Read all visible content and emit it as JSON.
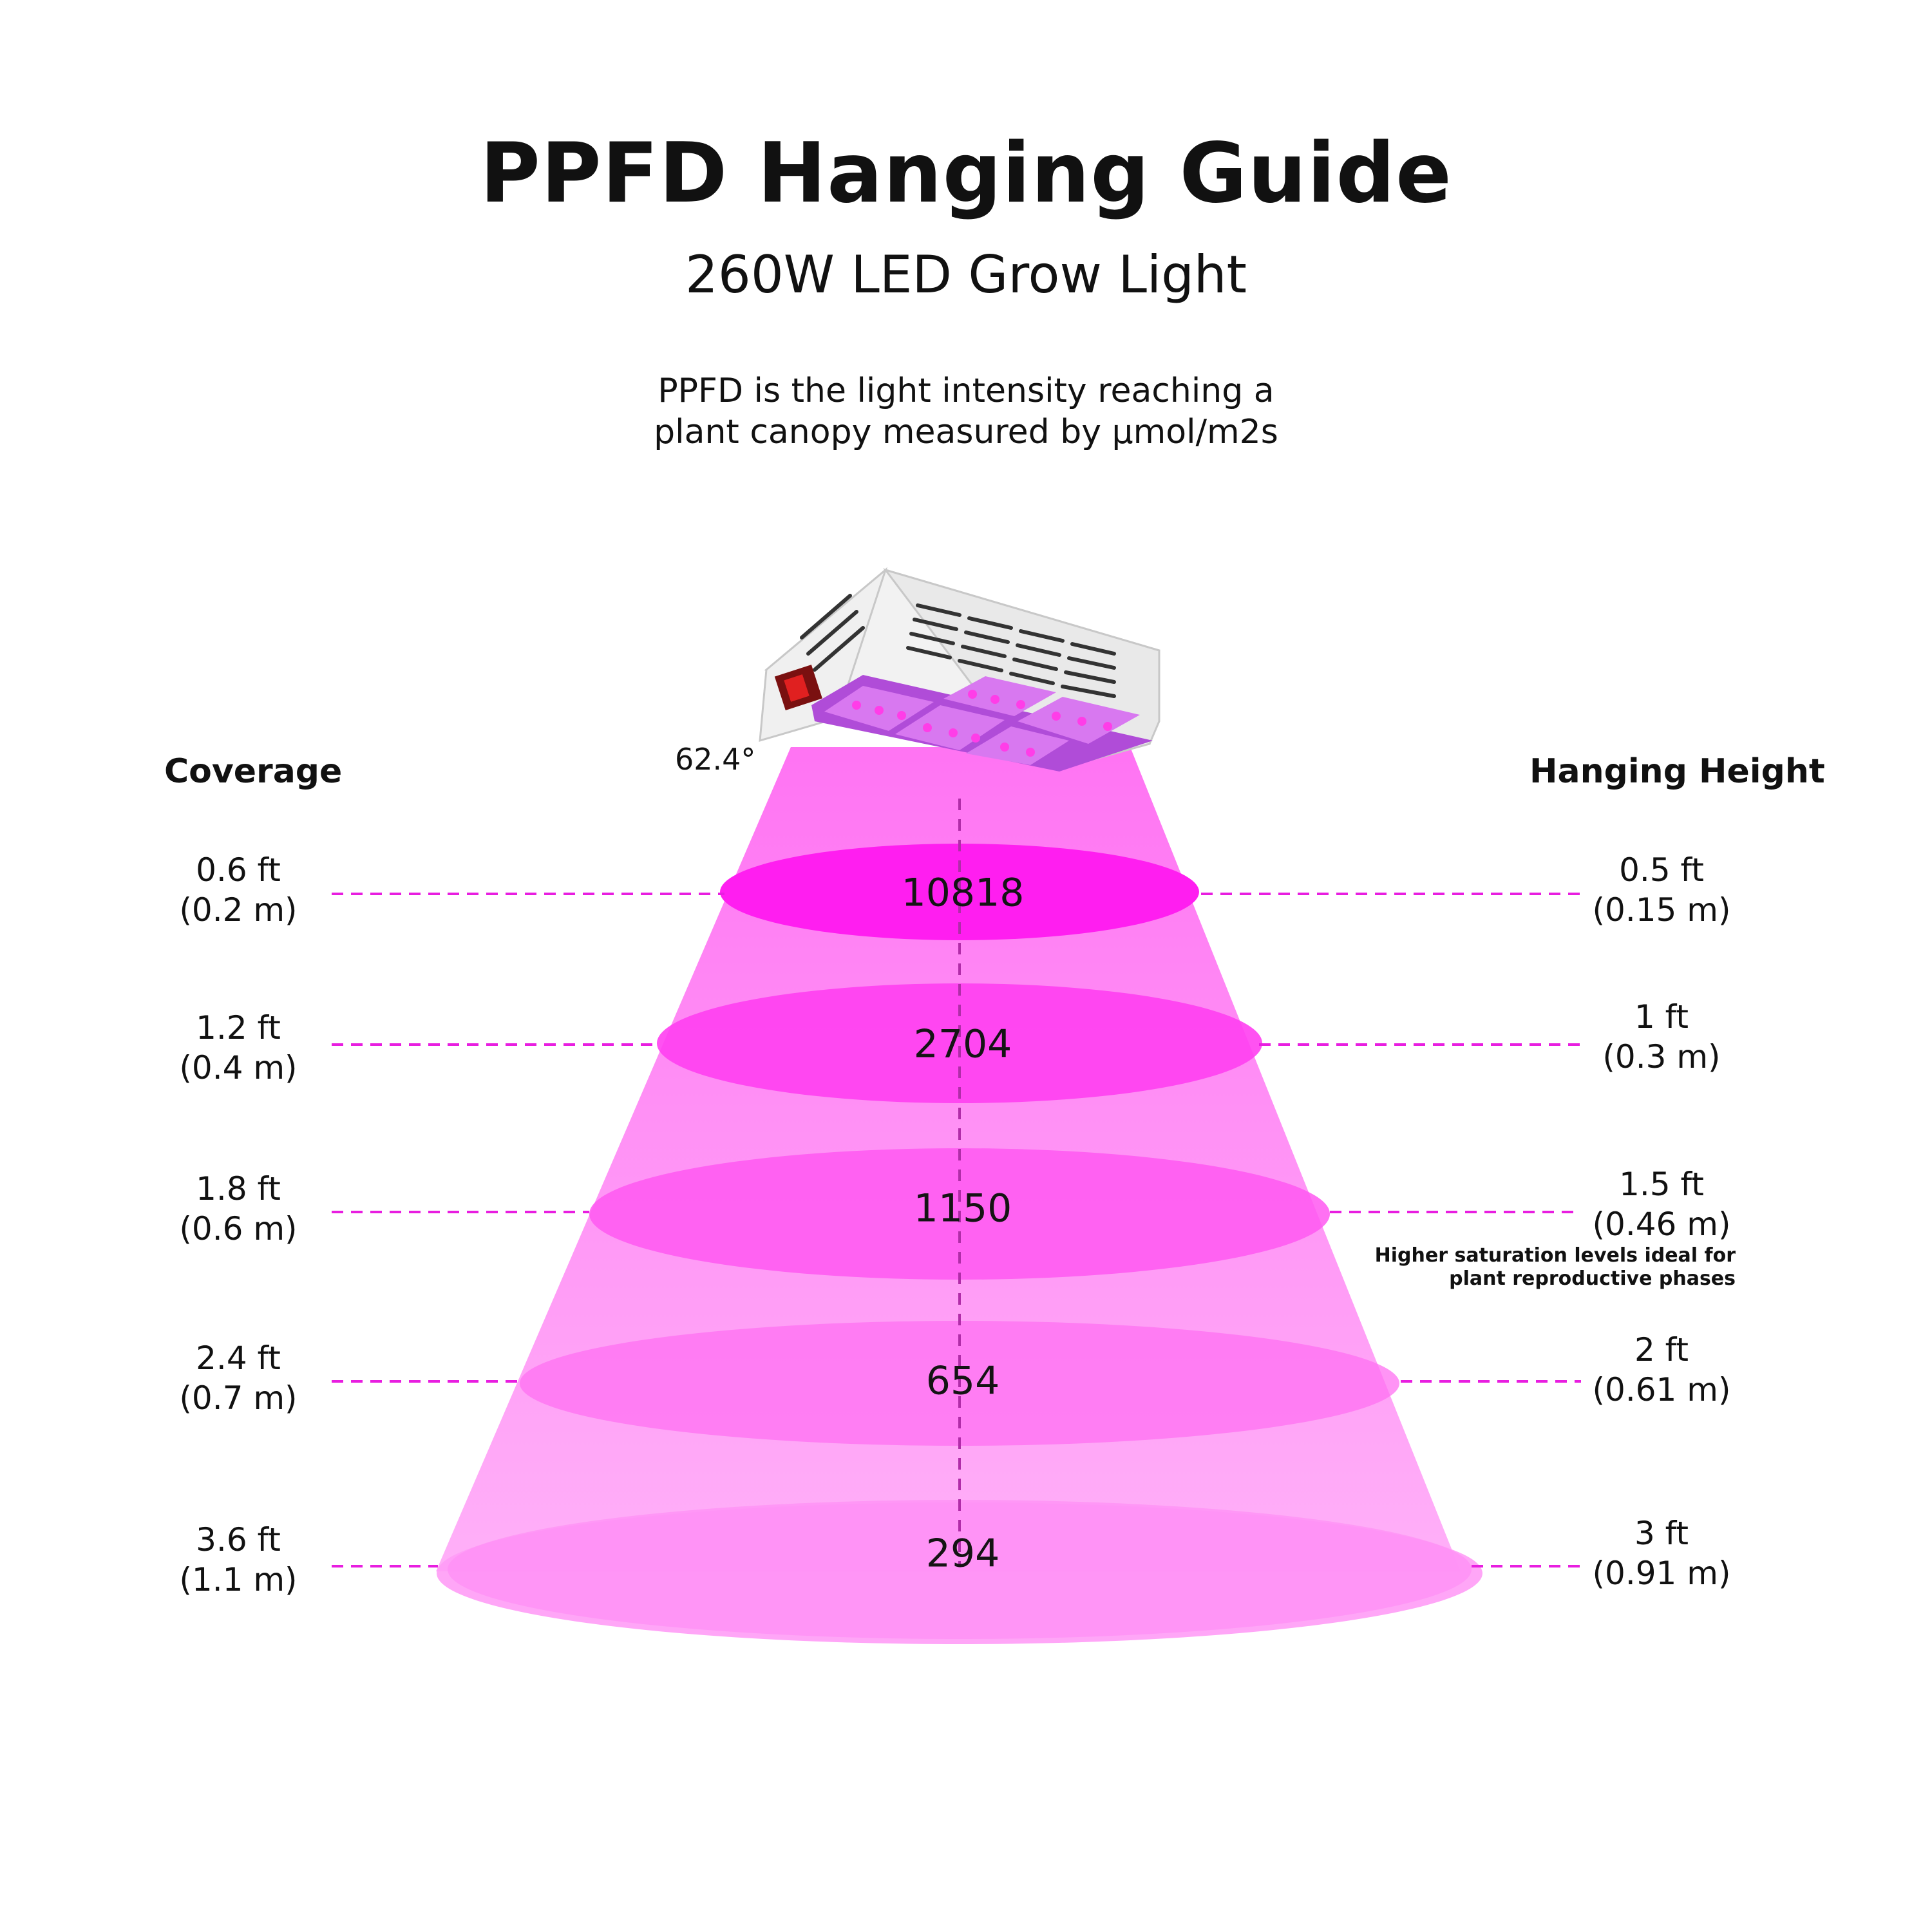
{
  "title": "PPFD Hanging Guide",
  "subtitle": "260W LED Grow Light",
  "description": {
    "line1": "PPFD is the light intensity reaching a",
    "line2": "plant canopy measured by µmol/m2s"
  },
  "angle_label": "62.4°",
  "columns": {
    "left": "Coverage",
    "right": "Hanging Height"
  },
  "rows": [
    {
      "ppfd": "10818",
      "coverage_ft": "0.6 ft",
      "coverage_m": "(0.2 m)",
      "height_ft": "0.5 ft",
      "height_m": "(0.15 m)"
    },
    {
      "ppfd": "2704",
      "coverage_ft": "1.2 ft",
      "coverage_m": "(0.4 m)",
      "height_ft": "1 ft",
      "height_m": "(0.3 m)"
    },
    {
      "ppfd": "1150",
      "coverage_ft": "1.8 ft",
      "coverage_m": "(0.6 m)",
      "height_ft": "1.5 ft",
      "height_m": "(0.46 m)"
    },
    {
      "ppfd": "654",
      "coverage_ft": "2.4 ft",
      "coverage_m": "(0.7 m)",
      "height_ft": "2 ft",
      "height_m": "(0.61 m)"
    },
    {
      "ppfd": "294",
      "coverage_ft": "3.6 ft",
      "coverage_m": "(1.1 m)",
      "height_ft": "3 ft",
      "height_m": "(0.91 m)"
    }
  ],
  "note": {
    "line1": "Higher saturation levels ideal for",
    "line2": "plant reproductive phases"
  },
  "colors": {
    "beam": "#ff7df5",
    "ellipse": "#ff22f0",
    "dash": "#e81ee0",
    "fixture": "#ededed",
    "led": "#d24ee6"
  }
}
